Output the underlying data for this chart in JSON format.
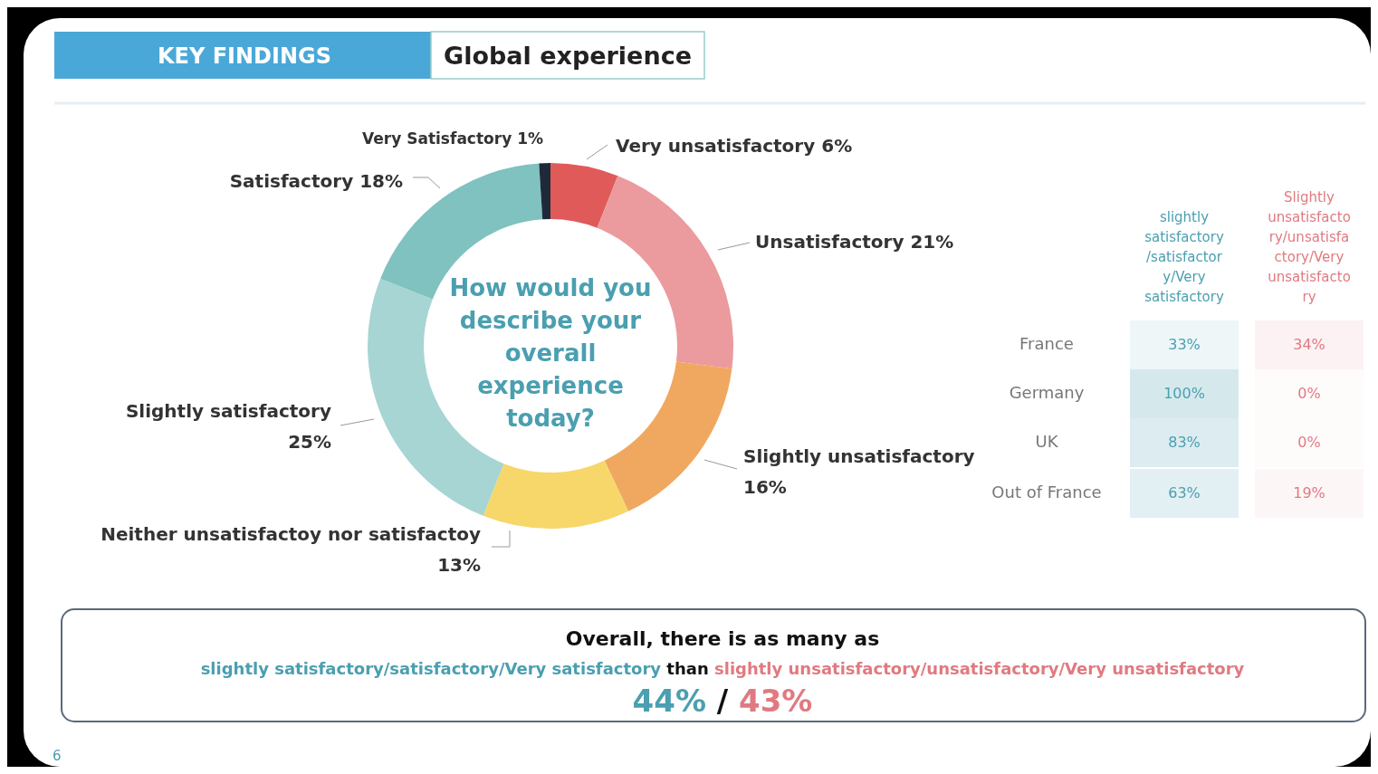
{
  "chart_data": [
    {
      "type": "donut",
      "title": "Global experience",
      "subtitle": "KEY FINDINGS",
      "categories": [
        "Very unsatisfactory",
        "Unsatisfactory",
        "Slightly unsatisfactory",
        "Neither unsatisfactoy nor satisfactoy",
        "Slightly satisfactory",
        "Satisfactory",
        "Very Satisfactory"
      ],
      "values": [
        6,
        21,
        16,
        13,
        25,
        18,
        1
      ],
      "value_labels": [
        "6%",
        "21%",
        "16%",
        "13%",
        "25%",
        "18%",
        "1%"
      ],
      "colors": [
        "#e05a5a",
        "#eb9a9e",
        "#f0a860",
        "#f7d76a",
        "#a6d5d3",
        "#7fc2bf",
        "#1e2a3a"
      ],
      "annotations": [
        "How would you describe your overall experience today?",
        "Overall, there is as many as",
        "slightly satisfactory/satisfactory/Very satisfactory",
        "than",
        "slightly unsatisfactory/unsatisfactory/Very unsatisfactory",
        "44%",
        "/",
        "43%",
        "6"
      ]
    },
    {
      "type": "heatmap",
      "categories": [
        "slightly satisfactory /satisfactory/Very satisfactory",
        "Slightly unsatisfactory/unsatisfactory/Very unsatisfactory"
      ],
      "y_categories": [
        "France",
        "Germany",
        "UK",
        "Out of France"
      ],
      "cells": [
        [
          33,
          34
        ],
        [
          100,
          0
        ],
        [
          83,
          0
        ],
        [
          63,
          19
        ]
      ],
      "cell_labels": [
        [
          "33%",
          "34%"
        ],
        [
          "100%",
          "0%"
        ],
        [
          "83%",
          "0%"
        ],
        [
          "63%",
          "19%"
        ]
      ]
    }
  ]
}
